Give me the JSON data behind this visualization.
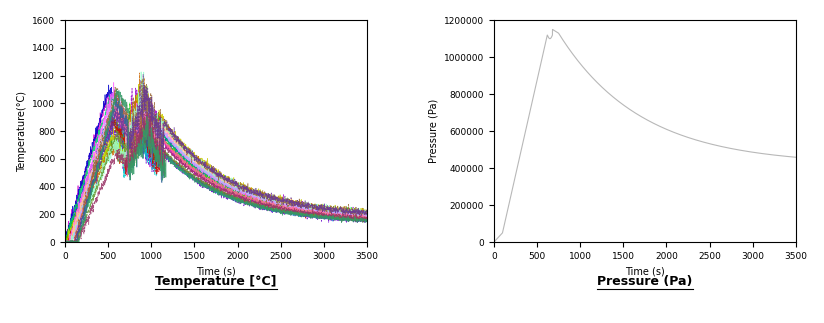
{
  "temp_xlabel": "Time (s)",
  "temp_ylabel": "Temperature(°C)",
  "temp_title": "Temperature [°C]",
  "temp_xlim": [
    0,
    3500
  ],
  "temp_ylim": [
    0,
    1600
  ],
  "temp_xticks": [
    0,
    500,
    1000,
    1500,
    2000,
    2500,
    3000,
    3500
  ],
  "temp_yticks": [
    0,
    200,
    400,
    600,
    800,
    1000,
    1200,
    1400,
    1600
  ],
  "press_xlabel": "Time (s)",
  "press_ylabel": "Pressure (Pa)",
  "press_title": "Pressure (Pa)",
  "press_xlim": [
    0,
    3500
  ],
  "press_ylim": [
    0,
    1200000
  ],
  "press_xticks": [
    0,
    500,
    1000,
    1500,
    2000,
    2500,
    3000,
    3500
  ],
  "press_yticks": [
    0,
    200000,
    400000,
    600000,
    800000,
    1000000,
    1200000
  ],
  "background_color": "#ffffff",
  "title_fontsize": 9,
  "axis_fontsize": 7,
  "tick_fontsize": 6.5
}
